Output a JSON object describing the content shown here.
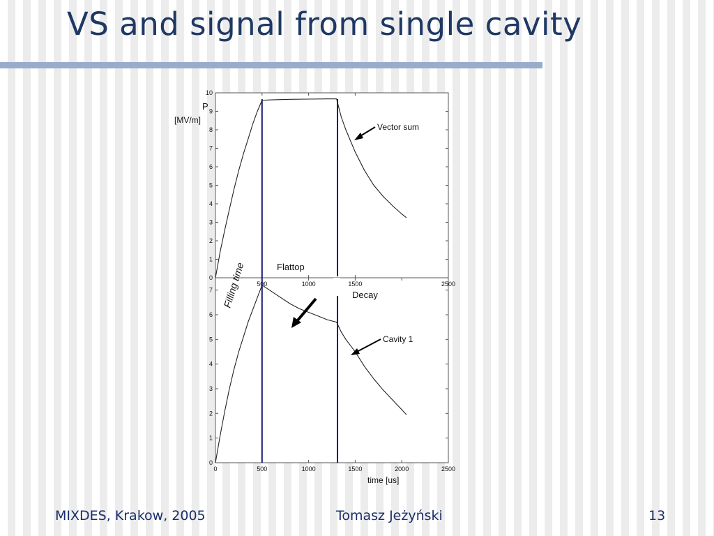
{
  "slide": {
    "title": "VS and signal from single cavity",
    "footer_left": "MIXDES, Krakow, 2005",
    "footer_center": "Tomasz Jeżyński",
    "page_number": "13"
  },
  "colors": {
    "title": "#1f3864",
    "rule": "#9aaccc",
    "marker": "#1a1a7a",
    "curve": "#222222"
  },
  "chart_data": [
    {
      "type": "line",
      "ylabel": "P",
      "ylabel_unit": "[MV/m]",
      "xlim": [
        0,
        2500
      ],
      "ylim": [
        0,
        10
      ],
      "x_ticks": [
        500,
        1000,
        1500,
        2500
      ],
      "y_ticks": [
        0,
        1,
        2,
        3,
        4,
        5,
        6,
        7,
        8,
        9,
        10
      ],
      "series": [
        {
          "name": "Vector sum",
          "x": [
            0,
            50,
            100,
            150,
            200,
            250,
            300,
            350,
            400,
            450,
            500,
            600,
            800,
            1000,
            1200,
            1300,
            1350,
            1400,
            1450,
            1500,
            1600,
            1700,
            1800,
            1900,
            2000,
            2050
          ],
          "y": [
            0,
            1.4,
            2.6,
            3.7,
            4.8,
            5.8,
            6.7,
            7.5,
            8.3,
            9.0,
            9.6,
            9.62,
            9.65,
            9.66,
            9.67,
            9.67,
            8.7,
            8.0,
            7.4,
            6.8,
            5.8,
            5.0,
            4.4,
            3.9,
            3.45,
            3.25
          ]
        }
      ],
      "annotations": [
        "Vector sum",
        "Flattop",
        "Decay",
        "Filling time"
      ]
    },
    {
      "type": "line",
      "xlabel": "time [us]",
      "xlim": [
        0,
        2500
      ],
      "ylim": [
        0,
        7.5
      ],
      "x_ticks": [
        0,
        500,
        1000,
        1500,
        2000,
        2500
      ],
      "y_ticks": [
        0,
        1,
        2,
        3,
        4,
        5,
        6,
        7
      ],
      "series": [
        {
          "name": "Cavity 1",
          "x": [
            0,
            50,
            100,
            150,
            200,
            250,
            300,
            350,
            400,
            450,
            500,
            600,
            700,
            800,
            900,
            1000,
            1100,
            1200,
            1300,
            1350,
            1400,
            1450,
            1500,
            1600,
            1700,
            1800,
            1900,
            2000,
            2050
          ],
          "y": [
            0,
            1.1,
            2.1,
            3.0,
            3.8,
            4.5,
            5.1,
            5.7,
            6.2,
            6.7,
            7.2,
            6.95,
            6.7,
            6.45,
            6.25,
            6.1,
            5.95,
            5.8,
            5.7,
            5.3,
            5.0,
            4.75,
            4.5,
            3.9,
            3.4,
            2.95,
            2.55,
            2.15,
            1.95
          ]
        }
      ],
      "annotations": [
        "Cavity 1"
      ]
    }
  ],
  "markers": {
    "x_values": [
      500,
      1310
    ]
  }
}
